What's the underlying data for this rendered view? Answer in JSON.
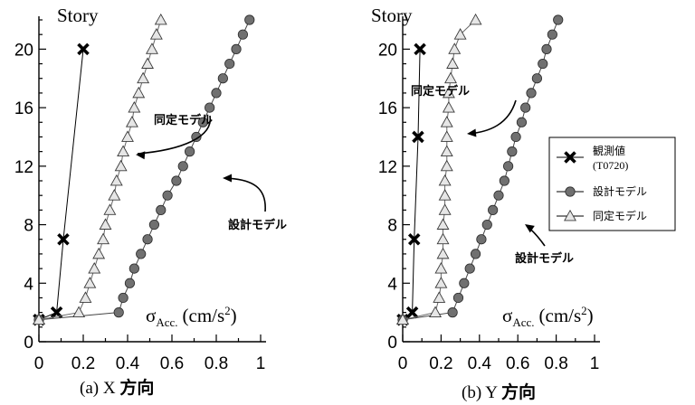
{
  "chart_data": [
    {
      "type": "line",
      "caption": "(a)  X 方向",
      "ylabel": "Story",
      "xlabel_symbol": "σ",
      "xlabel_subscript": "Acc.",
      "xlabel_unit": "(cm/s",
      "xlabel_unit_sup": "2",
      "xlabel_unit_close": ")",
      "xlim": [
        0,
        1
      ],
      "ylim": [
        0,
        22
      ],
      "xticks": [
        "0",
        "0.2",
        "0.4",
        "0.6",
        "0.8",
        "1"
      ],
      "yticks": [
        "0",
        "4",
        "8",
        "12",
        "16",
        "20"
      ],
      "annotations": [
        "同定モデル",
        "設計モデル"
      ],
      "series": [
        {
          "name": "観測値",
          "marker": "x",
          "points": [
            [
              0,
              1.5
            ],
            [
              0.08,
              2
            ],
            [
              0.11,
              7
            ],
            [
              0.2,
              20
            ]
          ]
        },
        {
          "name": "設計モデル",
          "marker": "circle",
          "points": [
            [
              0,
              1.5
            ],
            [
              0.36,
              2
            ],
            [
              0.38,
              3
            ],
            [
              0.41,
              4
            ],
            [
              0.43,
              5
            ],
            [
              0.46,
              6
            ],
            [
              0.49,
              7
            ],
            [
              0.52,
              8
            ],
            [
              0.55,
              9
            ],
            [
              0.58,
              10
            ],
            [
              0.62,
              11
            ],
            [
              0.65,
              12
            ],
            [
              0.68,
              13
            ],
            [
              0.71,
              14
            ],
            [
              0.74,
              15
            ],
            [
              0.77,
              16
            ],
            [
              0.8,
              17
            ],
            [
              0.83,
              18
            ],
            [
              0.86,
              19
            ],
            [
              0.89,
              20
            ],
            [
              0.92,
              21
            ],
            [
              0.95,
              22
            ]
          ]
        },
        {
          "name": "同定モデル",
          "marker": "triangle",
          "points": [
            [
              0,
              1.5
            ],
            [
              0.18,
              2
            ],
            [
              0.21,
              3
            ],
            [
              0.23,
              4
            ],
            [
              0.25,
              5
            ],
            [
              0.27,
              6
            ],
            [
              0.29,
              7
            ],
            [
              0.3,
              8
            ],
            [
              0.32,
              9
            ],
            [
              0.34,
              10
            ],
            [
              0.35,
              11
            ],
            [
              0.37,
              12
            ],
            [
              0.38,
              13
            ],
            [
              0.4,
              14
            ],
            [
              0.42,
              15
            ],
            [
              0.43,
              16
            ],
            [
              0.45,
              17
            ],
            [
              0.47,
              18
            ],
            [
              0.49,
              19
            ],
            [
              0.51,
              20
            ],
            [
              0.53,
              21
            ],
            [
              0.55,
              22
            ]
          ]
        }
      ]
    },
    {
      "type": "line",
      "caption": "(b)  Y 方向",
      "ylabel": "Story",
      "xlabel_symbol": "σ",
      "xlabel_subscript": "Acc.",
      "xlabel_unit": "(cm/s",
      "xlabel_unit_sup": "2",
      "xlabel_unit_close": ")",
      "xlim": [
        0,
        1
      ],
      "ylim": [
        0,
        22
      ],
      "xticks": [
        "0",
        "0.2",
        "0.4",
        "0.6",
        "0.8",
        "1"
      ],
      "yticks": [
        "0",
        "4",
        "8",
        "12",
        "16",
        "20"
      ],
      "annotations": [
        "同定モデル",
        "設計モデル"
      ],
      "legend": {
        "placement": "right",
        "entries": [
          {
            "label": "観測値",
            "sub": "(T0720)",
            "marker": "x"
          },
          {
            "label": "設計モデル",
            "marker": "circle"
          },
          {
            "label": "同定モデル",
            "marker": "triangle"
          }
        ]
      },
      "series": [
        {
          "name": "観測値",
          "marker": "x",
          "points": [
            [
              0,
              1.5
            ],
            [
              0.05,
              2
            ],
            [
              0.06,
              7
            ],
            [
              0.08,
              14
            ],
            [
              0.09,
              20
            ]
          ]
        },
        {
          "name": "設計モデル",
          "marker": "circle",
          "points": [
            [
              0,
              1.5
            ],
            [
              0.26,
              2
            ],
            [
              0.29,
              3
            ],
            [
              0.32,
              4
            ],
            [
              0.35,
              5
            ],
            [
              0.38,
              6
            ],
            [
              0.41,
              7
            ],
            [
              0.44,
              8
            ],
            [
              0.47,
              9
            ],
            [
              0.5,
              10
            ],
            [
              0.53,
              11
            ],
            [
              0.55,
              12
            ],
            [
              0.57,
              13
            ],
            [
              0.59,
              14
            ],
            [
              0.62,
              15
            ],
            [
              0.64,
              16
            ],
            [
              0.67,
              17
            ],
            [
              0.7,
              18
            ],
            [
              0.73,
              19
            ],
            [
              0.75,
              20
            ],
            [
              0.78,
              21
            ],
            [
              0.81,
              22
            ]
          ]
        },
        {
          "name": "同定モデル",
          "marker": "triangle",
          "points": [
            [
              0,
              1.5
            ],
            [
              0.17,
              2
            ],
            [
              0.19,
              3
            ],
            [
              0.2,
              4
            ],
            [
              0.2,
              5
            ],
            [
              0.21,
              6
            ],
            [
              0.21,
              7
            ],
            [
              0.21,
              8
            ],
            [
              0.22,
              9
            ],
            [
              0.22,
              10
            ],
            [
              0.22,
              11
            ],
            [
              0.23,
              12
            ],
            [
              0.23,
              13
            ],
            [
              0.23,
              14
            ],
            [
              0.23,
              15
            ],
            [
              0.24,
              16
            ],
            [
              0.24,
              17
            ],
            [
              0.25,
              18
            ],
            [
              0.26,
              19
            ],
            [
              0.27,
              20
            ],
            [
              0.3,
              21
            ],
            [
              0.38,
              22
            ]
          ]
        }
      ]
    }
  ]
}
